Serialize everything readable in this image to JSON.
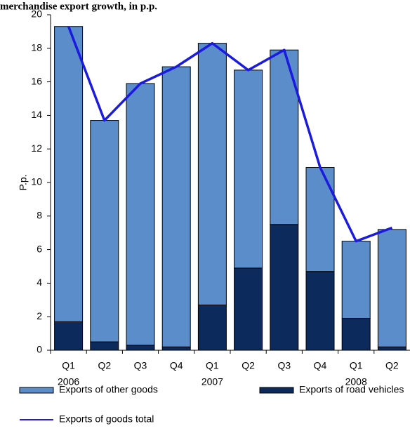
{
  "chart_data": {
    "type": "bar",
    "stacked": true,
    "title": "merchandise export growth, in p.p.",
    "y_label": "P.p.",
    "categories": [
      "Q1",
      "Q2",
      "Q3",
      "Q4",
      "Q1",
      "Q2",
      "Q3",
      "Q4",
      "Q1",
      "Q2"
    ],
    "categories_level2": [
      "2006",
      null,
      null,
      null,
      "2007",
      null,
      null,
      null,
      "2008",
      null
    ],
    "series": [
      {
        "name": "Exports of other goods",
        "color": "#5b8dcb",
        "values": [
          17.6,
          13.2,
          15.6,
          16.7,
          15.6,
          11.8,
          10.4,
          6.2,
          4.6,
          7.0
        ]
      },
      {
        "name": "Exports of road vehicles",
        "color": "#0d2a5c",
        "values": [
          1.7,
          0.5,
          0.3,
          0.2,
          2.7,
          4.9,
          7.5,
          4.7,
          1.9,
          0.2
        ]
      },
      {
        "name": "Exports of goods total",
        "color": "#1a1ae0",
        "type": "line",
        "values": [
          19.3,
          13.7,
          15.9,
          16.9,
          18.3,
          16.7,
          17.9,
          10.9,
          6.5,
          7.3
        ]
      }
    ],
    "stack_order": [
      1,
      0
    ],
    "ylim": [
      0,
      20
    ],
    "yticks": [
      0,
      2,
      4,
      6,
      8,
      10,
      12,
      14,
      16,
      18,
      20
    ]
  }
}
